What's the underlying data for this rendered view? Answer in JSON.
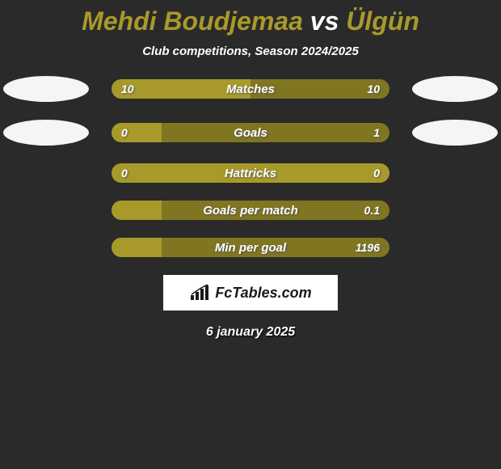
{
  "title": {
    "player1": "Mehdi Boudjemaa",
    "vs": "vs",
    "player2": "Ülgün",
    "accent_color": "#a89a2a"
  },
  "subtitle": "Club competitions, Season 2024/2025",
  "colors": {
    "left_fill": "#a89a2a",
    "right_fill": "#807520",
    "bg": "#2a2a2a",
    "ellipse": "#f5f5f5",
    "text": "#ffffff"
  },
  "stats": [
    {
      "label": "Matches",
      "left_val": "10",
      "right_val": "10",
      "left_pct": 50,
      "right_pct": 50,
      "show_ellipses": true,
      "show_left_val": true,
      "show_right_val": true
    },
    {
      "label": "Goals",
      "left_val": "0",
      "right_val": "1",
      "left_pct": 18,
      "right_pct": 82,
      "show_ellipses": true,
      "show_left_val": true,
      "show_right_val": true
    },
    {
      "label": "Hattricks",
      "left_val": "0",
      "right_val": "0",
      "left_pct": 100,
      "right_pct": 0,
      "show_ellipses": false,
      "show_left_val": true,
      "show_right_val": true
    },
    {
      "label": "Goals per match",
      "left_val": "",
      "right_val": "0.1",
      "left_pct": 18,
      "right_pct": 82,
      "show_ellipses": false,
      "show_left_val": false,
      "show_right_val": true
    },
    {
      "label": "Min per goal",
      "left_val": "",
      "right_val": "1196",
      "left_pct": 18,
      "right_pct": 82,
      "show_ellipses": false,
      "show_left_val": false,
      "show_right_val": true
    }
  ],
  "logo": {
    "text": "FcTables.com"
  },
  "date": "6 january 2025"
}
